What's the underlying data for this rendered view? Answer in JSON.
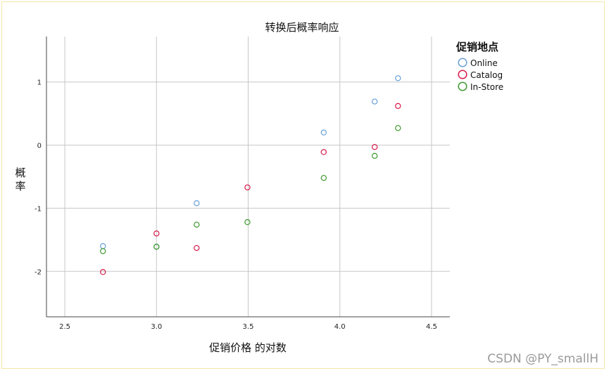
{
  "chart_data": {
    "type": "scatter",
    "title": "转换后概率响应",
    "xlabel": "促销价格 的对数",
    "ylabel": "概率",
    "xlim": [
      2.4,
      4.6
    ],
    "ylim": [
      -2.72,
      1.72
    ],
    "x_ticks": [
      2.5,
      3.0,
      3.5,
      4.0,
      4.5
    ],
    "x_tick_labels": [
      "2.5",
      "3.0",
      "3.5",
      "4.0",
      "4.5"
    ],
    "y_ticks": [
      1,
      0,
      -1,
      -2
    ],
    "y_tick_labels": [
      "1",
      "0",
      "-1",
      "-2"
    ],
    "grid": true,
    "legend": {
      "title": "促销地点",
      "placement": "right"
    },
    "series": [
      {
        "name": "Online",
        "color": "#6aa0d8",
        "x": [
          2.708,
          3.0,
          3.219,
          3.912,
          4.19,
          4.317
        ],
        "y": [
          -1.6,
          -1.61,
          -0.92,
          0.2,
          0.69,
          1.06
        ]
      },
      {
        "name": "Catalog",
        "color": "#d81b4a",
        "x": [
          2.708,
          3.0,
          3.219,
          3.496,
          3.912,
          4.19,
          4.317
        ],
        "y": [
          -2.01,
          -1.4,
          -1.63,
          -0.67,
          -0.11,
          -0.03,
          0.62
        ]
      },
      {
        "name": "In-Store",
        "color": "#3b9a2c",
        "x": [
          2.708,
          3.0,
          3.219,
          3.496,
          3.912,
          4.19,
          4.317
        ],
        "y": [
          -1.68,
          -1.61,
          -1.26,
          -1.22,
          -0.52,
          -0.17,
          0.27
        ]
      }
    ]
  },
  "watermark": "CSDN @PY_smallH"
}
